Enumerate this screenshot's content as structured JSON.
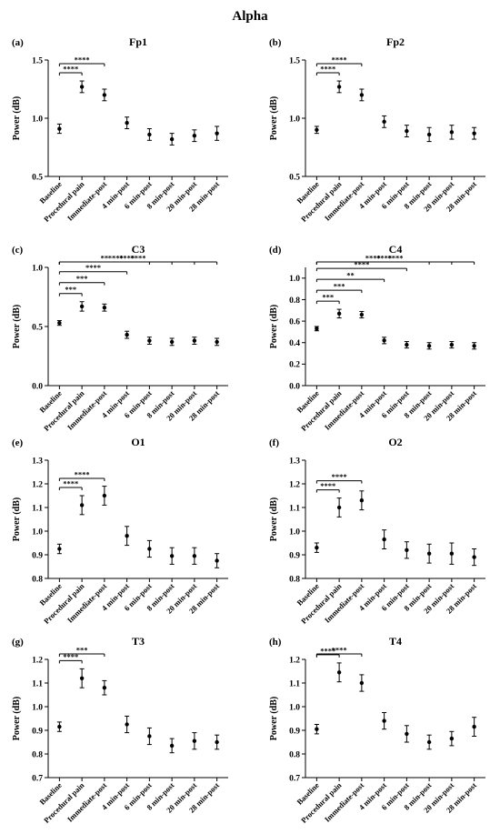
{
  "figure_title": "Alpha",
  "chart_data": [
    {
      "type": "scatter",
      "panel_label": "(a)",
      "title": "Fp1",
      "ylabel": "Power (dB)",
      "categories": [
        "Baseline",
        "Procedural pain",
        "Immediate-post",
        "4 min-post",
        "6 min-post",
        "8 min-post",
        "20 min-post",
        "28 min-post"
      ],
      "values": [
        0.91,
        1.27,
        1.2,
        0.96,
        0.86,
        0.82,
        0.85,
        0.87
      ],
      "errors": [
        0.04,
        0.05,
        0.05,
        0.05,
        0.05,
        0.05,
        0.05,
        0.06
      ],
      "ylim": [
        0.5,
        1.5
      ],
      "yticks": [
        "0.5",
        "1.0",
        "1.5"
      ],
      "significance": [
        {
          "from": 0,
          "to": 1,
          "stars": "****"
        },
        {
          "from": 0,
          "to": 2,
          "stars": "****"
        }
      ]
    },
    {
      "type": "scatter",
      "panel_label": "(b)",
      "title": "Fp2",
      "ylabel": "Power (dB)",
      "categories": [
        "Baseline",
        "Procedural pain",
        "Immediate-post",
        "4 min-post",
        "6 min-post",
        "8 min-post",
        "20 min-post",
        "28 min-post"
      ],
      "values": [
        0.9,
        1.27,
        1.2,
        0.97,
        0.89,
        0.86,
        0.88,
        0.87
      ],
      "errors": [
        0.03,
        0.05,
        0.05,
        0.05,
        0.05,
        0.06,
        0.06,
        0.05
      ],
      "ylim": [
        0.5,
        1.5
      ],
      "yticks": [
        "0.5",
        "1.0",
        "1.5"
      ],
      "significance": [
        {
          "from": 0,
          "to": 1,
          "stars": "****"
        },
        {
          "from": 0,
          "to": 2,
          "stars": "****"
        }
      ]
    },
    {
      "type": "scatter",
      "panel_label": "(c)",
      "title": "C3",
      "ylabel": "Power (dB)",
      "categories": [
        "Baseline",
        "Procedural pain",
        "Immediate-post",
        "4 min-post",
        "6 min-post",
        "8 min-post",
        "20 min-post",
        "28 min-post"
      ],
      "values": [
        0.53,
        0.67,
        0.66,
        0.43,
        0.38,
        0.37,
        0.38,
        0.37
      ],
      "errors": [
        0.02,
        0.04,
        0.03,
        0.03,
        0.03,
        0.03,
        0.03,
        0.03
      ],
      "ylim": [
        0.0,
        1.0
      ],
      "yticks": [
        "0.0",
        "0.5",
        "1.0"
      ],
      "significance": [
        {
          "from": 0,
          "to": 1,
          "stars": "***"
        },
        {
          "from": 0,
          "to": 2,
          "stars": "***"
        },
        {
          "from": 0,
          "to": 3,
          "stars": "****"
        },
        {
          "from": 0,
          "to": 4,
          "stars": "**"
        },
        {
          "from": 0,
          "to": 5,
          "stars": "****"
        },
        {
          "from": 0,
          "to": 6,
          "stars": "****"
        },
        {
          "from": 0,
          "to": 7,
          "stars": "****"
        }
      ]
    },
    {
      "type": "scatter",
      "panel_label": "(d)",
      "title": "C4",
      "ylabel": "Power (dB)",
      "categories": [
        "Baseline",
        "Procedural pain",
        "Immediate-post",
        "4 min-post",
        "6 min-post",
        "8 min-post",
        "20 min-post",
        "28 min-post"
      ],
      "values": [
        0.53,
        0.67,
        0.66,
        0.42,
        0.38,
        0.37,
        0.38,
        0.37
      ],
      "errors": [
        0.02,
        0.04,
        0.03,
        0.03,
        0.03,
        0.03,
        0.03,
        0.03
      ],
      "ylim": [
        0.0,
        1.1
      ],
      "yticks": [
        "0.0",
        "0.2",
        "0.4",
        "0.6",
        "0.8",
        "1.0"
      ],
      "significance": [
        {
          "from": 0,
          "to": 1,
          "stars": "***"
        },
        {
          "from": 0,
          "to": 2,
          "stars": "***"
        },
        {
          "from": 0,
          "to": 3,
          "stars": "**"
        },
        {
          "from": 0,
          "to": 4,
          "stars": "****"
        },
        {
          "from": 0,
          "to": 5,
          "stars": "****"
        },
        {
          "from": 0,
          "to": 6,
          "stars": "****"
        },
        {
          "from": 0,
          "to": 7,
          "stars": "****"
        }
      ]
    },
    {
      "type": "scatter",
      "panel_label": "(e)",
      "title": "O1",
      "ylabel": "Power (dB)",
      "categories": [
        "Baseline",
        "Procedural pain",
        "Immediate-post",
        "4 min-post",
        "6 min-post",
        "8 min-post",
        "20 min-post",
        "28 min-post"
      ],
      "values": [
        0.925,
        1.11,
        1.15,
        0.98,
        0.925,
        0.895,
        0.895,
        0.875
      ],
      "errors": [
        0.02,
        0.04,
        0.04,
        0.04,
        0.035,
        0.035,
        0.035,
        0.03
      ],
      "ylim": [
        0.8,
        1.3
      ],
      "yticks": [
        "0.8",
        "0.9",
        "1.0",
        "1.1",
        "1.2",
        "1.3"
      ],
      "significance": [
        {
          "from": 0,
          "to": 1,
          "stars": "****"
        },
        {
          "from": 0,
          "to": 2,
          "stars": "****"
        }
      ]
    },
    {
      "type": "scatter",
      "panel_label": "(f)",
      "title": "O2",
      "ylabel": "Power (dB)",
      "categories": [
        "Baseline",
        "Procedural pain",
        "Immediate-post",
        "4 min-post",
        "6 min-post",
        "8 min-post",
        "20 min-post",
        "28 min-post"
      ],
      "values": [
        0.93,
        1.1,
        1.13,
        0.965,
        0.92,
        0.905,
        0.905,
        0.89
      ],
      "errors": [
        0.02,
        0.04,
        0.04,
        0.04,
        0.035,
        0.04,
        0.045,
        0.035
      ],
      "ylim": [
        0.8,
        1.3
      ],
      "yticks": [
        "0.8",
        "0.9",
        "1.0",
        "1.1",
        "1.2",
        "1.3"
      ],
      "significance": [
        {
          "from": 0,
          "to": 1,
          "stars": "****"
        },
        {
          "from": 0,
          "to": 2,
          "stars": "****"
        }
      ]
    },
    {
      "type": "scatter",
      "panel_label": "(g)",
      "title": "T3",
      "ylabel": "Power (dB)",
      "categories": [
        "Baseline",
        "Procedural pain",
        "Immediate-post",
        "4 min-post",
        "6 min-post",
        "8 min-post",
        "20 min-post",
        "28 min-post"
      ],
      "values": [
        0.915,
        1.12,
        1.08,
        0.925,
        0.875,
        0.835,
        0.855,
        0.85
      ],
      "errors": [
        0.02,
        0.04,
        0.03,
        0.035,
        0.035,
        0.03,
        0.035,
        0.03
      ],
      "ylim": [
        0.7,
        1.2
      ],
      "yticks": [
        "0.7",
        "0.8",
        "0.9",
        "1.0",
        "1.1",
        "1.2"
      ],
      "significance": [
        {
          "from": 0,
          "to": 1,
          "stars": "****"
        },
        {
          "from": 0,
          "to": 2,
          "stars": "***"
        }
      ]
    },
    {
      "type": "scatter",
      "panel_label": "(h)",
      "title": "T4",
      "ylabel": "Power (dB)",
      "categories": [
        "Baseline",
        "Procedural pain",
        "Immediate-post",
        "4 min-post",
        "6 min-post",
        "8 min-post",
        "20 min-post",
        "28 min-post"
      ],
      "values": [
        0.905,
        1.145,
        1.1,
        0.94,
        0.885,
        0.85,
        0.865,
        0.915
      ],
      "errors": [
        0.02,
        0.04,
        0.035,
        0.035,
        0.035,
        0.03,
        0.03,
        0.04
      ],
      "ylim": [
        0.7,
        1.2
      ],
      "yticks": [
        "0.7",
        "0.8",
        "0.9",
        "1.0",
        "1.1",
        "1.2"
      ],
      "significance": [
        {
          "from": 0,
          "to": 1,
          "stars": "****"
        },
        {
          "from": 0,
          "to": 2,
          "stars": "****"
        }
      ]
    }
  ]
}
